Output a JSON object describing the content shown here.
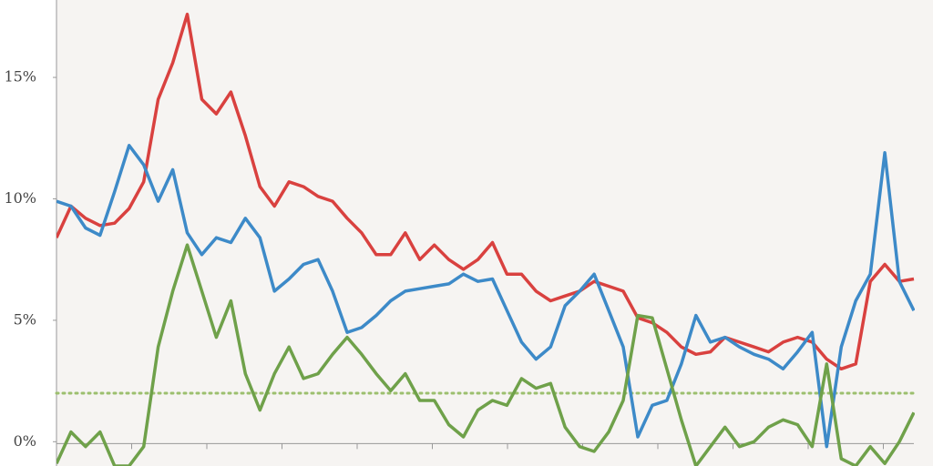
{
  "chart_data": {
    "type": "line",
    "categories": [
      null,
      null,
      null,
      null,
      null,
      null,
      null,
      null,
      null,
      null,
      null,
      null,
      null,
      null,
      null,
      null,
      null,
      null,
      null,
      null,
      null,
      null,
      null,
      null,
      null,
      null,
      null,
      null,
      null,
      null,
      null,
      null,
      null,
      null,
      null,
      null,
      null,
      null,
      null,
      null,
      null,
      null,
      null,
      null,
      null,
      null,
      null,
      null,
      null,
      null,
      null,
      null,
      null,
      null,
      null,
      null,
      null,
      null,
      null,
      null
    ],
    "series": [
      {
        "color": "#d9413f",
        "values": [
          8.4,
          9.7,
          9.2,
          8.9,
          9.0,
          9.6,
          10.7,
          14.1,
          15.6,
          17.6,
          14.1,
          13.5,
          14.4,
          12.6,
          10.5,
          9.7,
          10.7,
          10.5,
          10.1,
          9.9,
          9.2,
          8.6,
          7.7,
          7.7,
          8.6,
          7.5,
          8.1,
          7.5,
          7.1,
          7.5,
          8.2,
          6.9,
          6.9,
          6.2,
          5.8,
          6.0,
          6.2,
          6.6,
          6.4,
          6.2,
          5.1,
          4.9,
          4.5,
          3.9,
          3.6,
          3.7,
          4.3,
          4.1,
          3.9,
          3.7,
          4.1,
          4.3,
          4.1,
          3.4,
          3.0,
          3.2,
          6.6,
          7.3,
          6.6,
          6.7
        ]
      },
      {
        "color": "#3d8ac8",
        "values": [
          9.9,
          9.7,
          8.8,
          8.5,
          10.3,
          12.2,
          11.4,
          9.9,
          11.2,
          8.6,
          7.7,
          8.4,
          8.2,
          9.2,
          8.4,
          6.2,
          6.7,
          7.3,
          7.5,
          6.2,
          4.5,
          4.7,
          5.2,
          5.8,
          6.2,
          6.3,
          6.4,
          6.5,
          6.9,
          6.6,
          6.7,
          5.4,
          4.1,
          3.4,
          3.9,
          5.6,
          6.2,
          6.9,
          5.4,
          3.9,
          0.2,
          1.5,
          1.7,
          3.2,
          5.2,
          4.1,
          4.3,
          3.9,
          3.6,
          3.4,
          3.0,
          3.7,
          4.5,
          -0.2,
          3.9,
          5.8,
          6.9,
          11.9,
          6.6,
          5.4
        ]
      },
      {
        "color": "#6fa14a",
        "values": [
          -0.9,
          0.4,
          -0.2,
          0.4,
          -1.0,
          -1.0,
          -0.2,
          3.9,
          6.2,
          8.1,
          6.2,
          4.3,
          5.8,
          2.8,
          1.3,
          2.8,
          3.9,
          2.6,
          2.8,
          3.6,
          4.3,
          3.6,
          2.8,
          2.1,
          2.8,
          1.7,
          1.7,
          0.7,
          0.2,
          1.3,
          1.7,
          1.5,
          2.6,
          2.2,
          2.4,
          0.6,
          -0.2,
          -0.4,
          0.4,
          1.7,
          5.2,
          5.1,
          3.0,
          0.9,
          -1.0,
          -0.2,
          0.6,
          -0.2,
          0.0,
          0.6,
          0.9,
          0.7,
          -0.2,
          3.2,
          -0.7,
          -1.0,
          -0.2,
          -0.9,
          0.0,
          1.2
        ]
      }
    ],
    "ylim": [
      -1,
      18
    ],
    "yticks": [
      {
        "value": 0,
        "label": "0%"
      },
      {
        "value": 5,
        "label": "5%"
      },
      {
        "value": 10,
        "label": "10%"
      },
      {
        "value": 15,
        "label": "15%"
      }
    ],
    "reference_line": {
      "value": 2,
      "color": "#9cbf6e"
    },
    "background": "#f6f4f2"
  }
}
